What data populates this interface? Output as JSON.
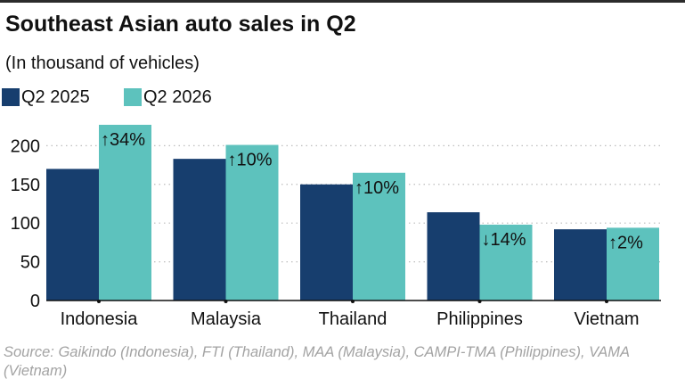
{
  "title": "Southeast Asian auto sales in Q2",
  "subtitle": "(In thousand of vehicles)",
  "source": "Source: Gaikindo (Indonesia), FTI (Thailand), MAA (Malaysia), CAMPI-TMA (Philippines), VAMA (Vietnam)",
  "colors": {
    "q2_2025": "#173e6e",
    "q2_2026": "#5dc2bd",
    "grid": "#bdbdbd",
    "text": "#111111"
  },
  "chart_data": {
    "type": "bar",
    "categories": [
      "Indonesia",
      "Malaysia",
      "Thailand",
      "Philippines",
      "Vietnam"
    ],
    "series": [
      {
        "name": "Q2 2025",
        "values": [
          170,
          183,
          150,
          114,
          92
        ]
      },
      {
        "name": "Q2 2026",
        "values": [
          227,
          201,
          165,
          98,
          94
        ]
      }
    ],
    "change_labels": [
      "↑34%",
      "↑10%",
      "↑10%",
      "↓14%",
      "↑2%"
    ],
    "yticks": [
      0,
      50,
      100,
      150,
      200
    ],
    "ylim": [
      0,
      235
    ],
    "grid": true,
    "legend_position": "top-left"
  }
}
